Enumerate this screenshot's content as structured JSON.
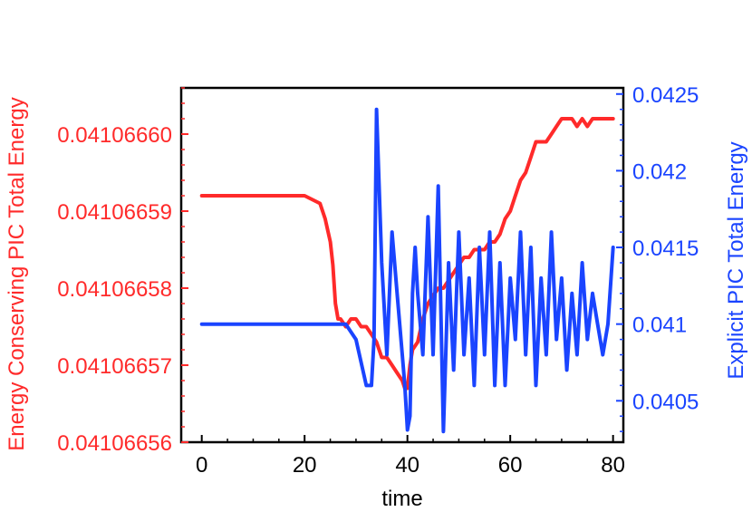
{
  "chart_data": {
    "type": "line",
    "xlabel": "time",
    "ylabel_left": "Energy Conserving PIC Total Energy",
    "ylabel_right": "Explicit PIC Total Energy",
    "xlim": [
      -4,
      82
    ],
    "ylim_left": [
      0.04106656,
      0.041066606
    ],
    "ylim_right": [
      0.04023,
      0.04254
    ],
    "x_ticks": [
      0,
      20,
      40,
      60,
      80
    ],
    "x_tick_labels": [
      "0",
      "20",
      "40",
      "60",
      "80"
    ],
    "left_ticks": [
      0.04106656,
      0.04106657,
      0.04106658,
      0.04106659,
      0.0410666
    ],
    "left_tick_labels": [
      "0.04106656",
      "0.04106657",
      "0.04106658",
      "0.04106659",
      "0.04106660"
    ],
    "right_ticks": [
      0.0405,
      0.041,
      0.0415,
      0.042,
      0.0425
    ],
    "right_tick_labels": [
      "0.0405",
      "0.041",
      "0.0415",
      "0.042",
      "0.0425"
    ],
    "colors": {
      "left": "#ff2a2a",
      "right": "#1a44ff"
    },
    "series": [
      {
        "axis": "left",
        "color": "#ff2a2a",
        "x": [
          0,
          10,
          20,
          23,
          24,
          25,
          25.5,
          26,
          26.5,
          27,
          28,
          29,
          30,
          31,
          32,
          33,
          34,
          35,
          36,
          37,
          38,
          39,
          39.5,
          40,
          40.5,
          41,
          42,
          43,
          44,
          45,
          46,
          47,
          48,
          49,
          50,
          51,
          52,
          53,
          54,
          55,
          56,
          57,
          58,
          59,
          60,
          61,
          62,
          63,
          64,
          65,
          66,
          67,
          68,
          69,
          70,
          71,
          72,
          73,
          74,
          75,
          76,
          77,
          78,
          79,
          80
        ],
        "values": [
          0.041066592,
          0.041066592,
          0.041066592,
          0.041066591,
          0.041066589,
          0.041066586,
          0.041066583,
          0.041066578,
          0.041066576,
          0.041066576,
          0.041066575,
          0.041066576,
          0.041066576,
          0.041066575,
          0.041066575,
          0.041066574,
          0.041066573,
          0.041066571,
          0.041066571,
          0.04106657,
          0.041066569,
          0.041066568,
          0.041066567,
          0.041066567,
          0.04106657,
          0.041066572,
          0.041066573,
          0.041066576,
          0.041066578,
          0.041066579,
          0.04106658,
          0.04106658,
          0.041066581,
          0.041066582,
          0.041066583,
          0.041066584,
          0.041066584,
          0.041066585,
          0.041066585,
          0.041066585,
          0.041066586,
          0.041066586,
          0.041066587,
          0.041066589,
          0.04106659,
          0.041066592,
          0.041066594,
          0.041066595,
          0.041066597,
          0.041066599,
          0.041066599,
          0.041066599,
          0.0410666,
          0.041066601,
          0.041066602,
          0.041066602,
          0.041066602,
          0.041066601,
          0.041066602,
          0.041066601,
          0.041066602,
          0.041066602,
          0.041066602,
          0.041066602,
          0.041066602
        ]
      },
      {
        "axis": "right",
        "color": "#1a44ff",
        "x": [
          0,
          20,
          26,
          28,
          30,
          32,
          33,
          33.5,
          34,
          35,
          36,
          37,
          38,
          39,
          39.5,
          40,
          40.5,
          41,
          41.5,
          42,
          43,
          44,
          45,
          46,
          47,
          48,
          49,
          50,
          51,
          52,
          53,
          54,
          55,
          56,
          57,
          58,
          59,
          60,
          61,
          62,
          63,
          64,
          65,
          66,
          67,
          68,
          69,
          70,
          71,
          72,
          73,
          74,
          75,
          76,
          77,
          78,
          79,
          80
        ],
        "values": [
          0.041,
          0.041,
          0.041,
          0.041,
          0.0409,
          0.0406,
          0.0406,
          0.0409,
          0.0424,
          0.0414,
          0.0408,
          0.0416,
          0.0412,
          0.0408,
          0.0406,
          0.04031,
          0.0404,
          0.0412,
          0.0415,
          0.0412,
          0.0408,
          0.0417,
          0.0408,
          0.0419,
          0.0403,
          0.0414,
          0.0407,
          0.0416,
          0.0408,
          0.0413,
          0.0406,
          0.0415,
          0.0408,
          0.0416,
          0.0406,
          0.0414,
          0.0406,
          0.0413,
          0.0409,
          0.0416,
          0.0408,
          0.0415,
          0.0406,
          0.0413,
          0.0408,
          0.0416,
          0.0409,
          0.0413,
          0.0407,
          0.0412,
          0.0408,
          0.0414,
          0.0409,
          0.0412,
          0.041,
          0.0408,
          0.041,
          0.0415
        ]
      }
    ]
  }
}
